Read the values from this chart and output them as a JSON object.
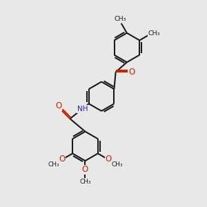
{
  "background_color": "#e8e8e8",
  "bond_color": "#1a1a1a",
  "oxygen_color": "#cc2200",
  "nitrogen_color": "#2222cc",
  "line_width": 1.5,
  "figsize": [
    3.0,
    3.0
  ],
  "dpi": 100,
  "xlim": [
    0,
    10
  ],
  "ylim": [
    0,
    10
  ]
}
